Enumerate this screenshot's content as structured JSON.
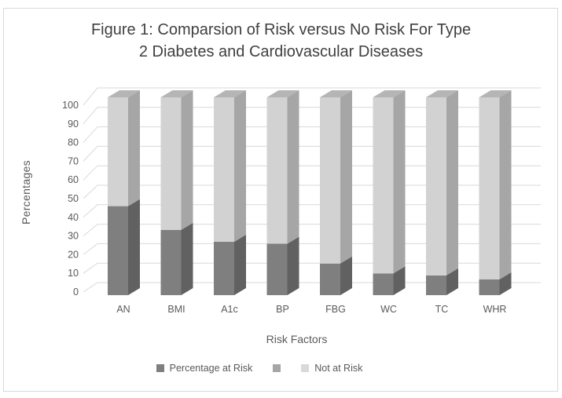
{
  "figure": {
    "background": "#ffffff",
    "border_color": "#d9d9d9",
    "title_lines": [
      "Figure 1: Comparsion of Risk versus No Risk For Type",
      "2 Diabetes and Cardiovascular Diseases"
    ]
  },
  "chart_data": {
    "type": "bar",
    "subtype": "stacked-column-3d-100pct",
    "title": "Figure 1: Comparsion of Risk versus No Risk For Type 2 Diabetes and Cardiovascular Diseases",
    "xlabel": "Risk Factors",
    "ylabel": "Percentages",
    "ylim": [
      0,
      100
    ],
    "ytick_step": 10,
    "yticks": [
      0,
      10,
      20,
      30,
      40,
      50,
      60,
      70,
      80,
      90,
      100
    ],
    "grid": true,
    "gridline_color": "#d9d9d9",
    "text_color": "#595959",
    "title_color": "#404040",
    "categories": [
      "AN",
      "BMI",
      "A1c",
      "BP",
      "FBG",
      "WC",
      "TC",
      "WHR"
    ],
    "series": [
      {
        "name": "Percentage at Risk",
        "values": [
          45,
          33,
          27,
          26,
          16,
          11,
          10,
          8
        ],
        "color": "#7f7f7f",
        "color_side": "#616161",
        "color_top": "#6f6f6f"
      },
      {
        "name": "Not at Risk",
        "values": [
          55,
          67,
          73,
          74,
          84,
          89,
          90,
          92
        ],
        "color": "#d2d2d2",
        "color_side": "#a6a6a6",
        "color_top": "#b5b5b5"
      }
    ],
    "legend": {
      "position": "bottom",
      "items": [
        {
          "label": "Percentage at Risk",
          "color": "#7f7f7f"
        },
        {
          "label": "",
          "color": "#a6a6a6"
        },
        {
          "label": "Not at Risk",
          "color": "#d9d9d9"
        }
      ]
    }
  }
}
